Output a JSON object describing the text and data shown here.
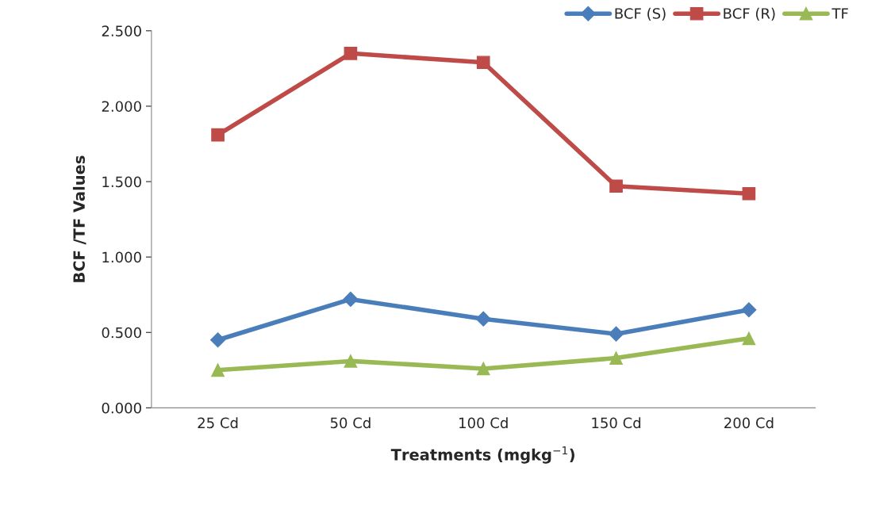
{
  "chart_data": {
    "type": "line",
    "xlabel": "Treatments (mgkg$^{−1}$)",
    "ylabel": "BCF /TF Values",
    "categories": [
      "25 Cd",
      "50 Cd",
      "100 Cd",
      "150 Cd",
      "200 Cd"
    ],
    "series": [
      {
        "name": "BCF (S)",
        "color": "#4a7ebb",
        "marker": "diamond",
        "values": [
          0.45,
          0.72,
          0.59,
          0.49,
          0.65
        ]
      },
      {
        "name": "BCF (R)",
        "color": "#be4b48",
        "marker": "square",
        "values": [
          1.81,
          2.35,
          2.29,
          1.47,
          1.42
        ]
      },
      {
        "name": "TF",
        "color": "#98b954",
        "marker": "triangle",
        "values": [
          0.25,
          0.31,
          0.26,
          0.33,
          0.46
        ]
      }
    ],
    "ylim": [
      0,
      2.5
    ],
    "yticks": [
      {
        "value": 0,
        "label": "0.000"
      },
      {
        "value": 0.5,
        "label": "0.500"
      },
      {
        "value": 1,
        "label": "1.000"
      },
      {
        "value": 1.5,
        "label": "1.500"
      },
      {
        "value": 2,
        "label": "2.000"
      },
      {
        "value": 2.5,
        "label": "2.500"
      }
    ],
    "grid": false,
    "legend": "top right",
    "line_style": "solid"
  }
}
